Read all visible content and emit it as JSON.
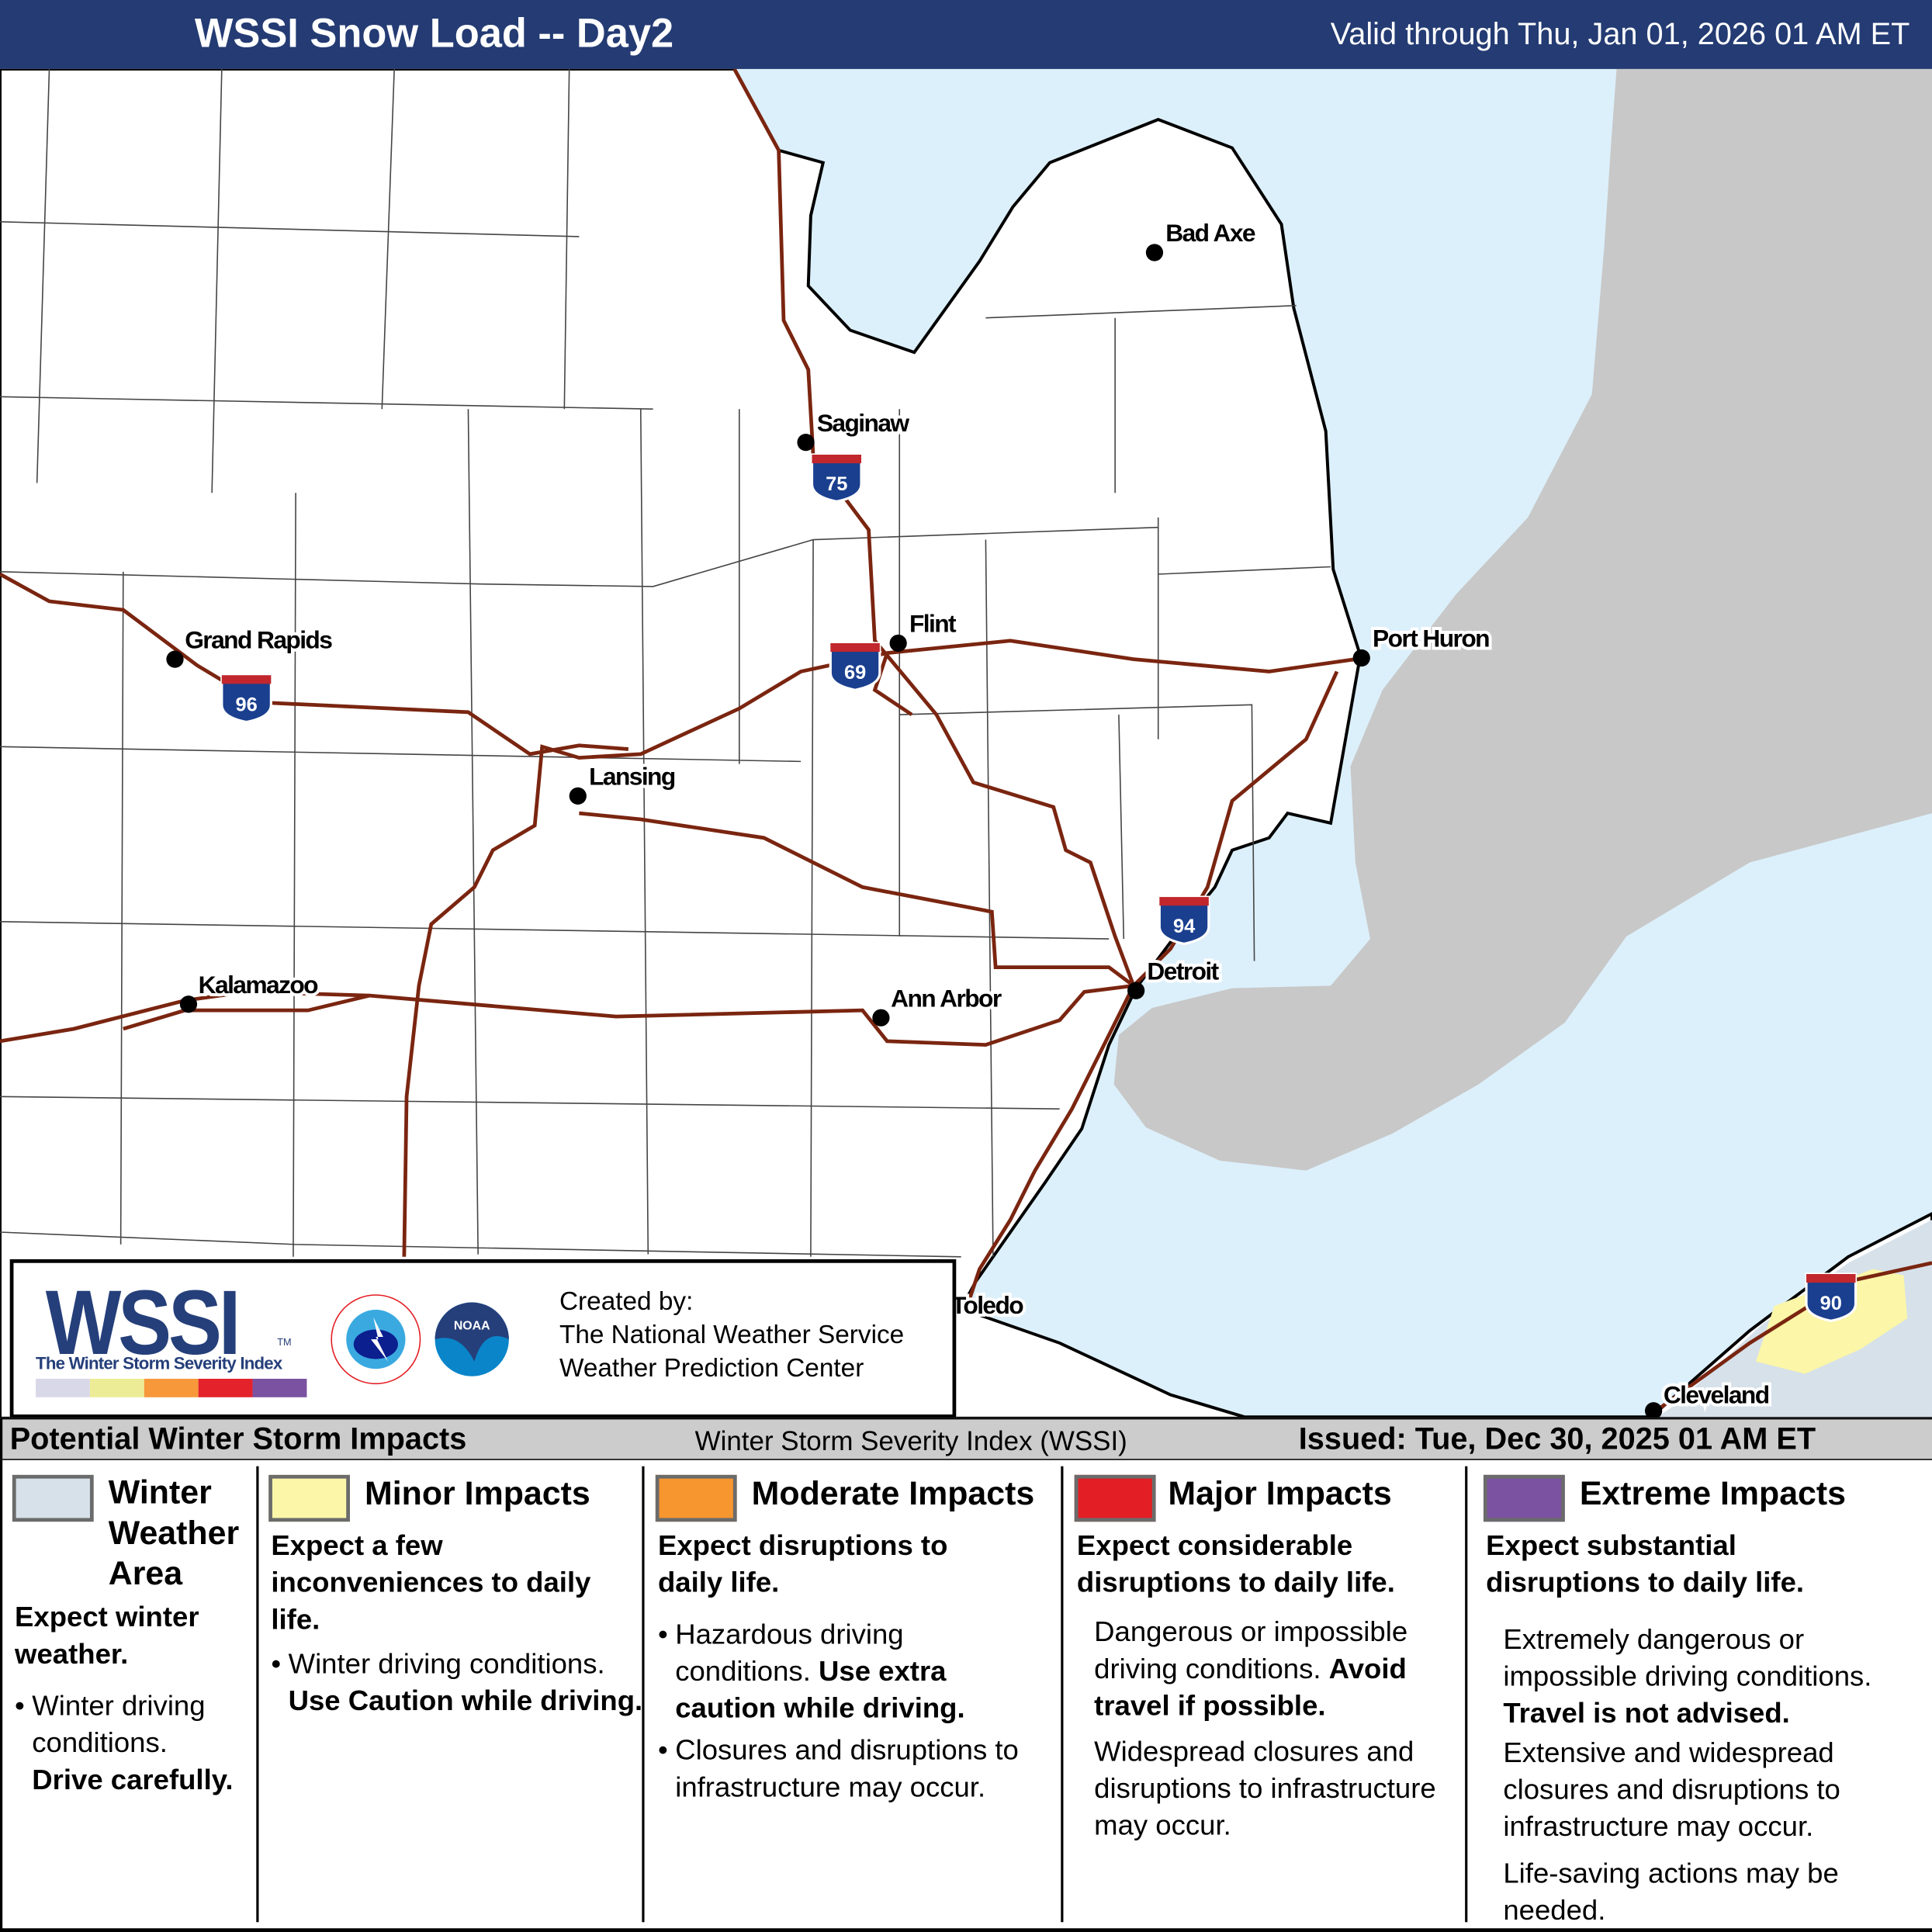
{
  "header": {
    "title": "WSSI Snow Load -- Day2",
    "valid": "Valid through Thu, Jan 01, 2026 01 AM ET",
    "bg_color": "#243b73"
  },
  "map": {
    "colors": {
      "land": "#ffffff",
      "water": "#dcf0fb",
      "canada": "#c8c8c8",
      "road": "#7a2510",
      "winter_weather_area": "#d6e1ea",
      "minor": "#fbf6a8"
    },
    "cities": [
      {
        "name": "Bad Axe"
      },
      {
        "name": "Saginaw"
      },
      {
        "name": "Grand Rapids"
      },
      {
        "name": "Flint"
      },
      {
        "name": "Port Huron"
      },
      {
        "name": "Lansing"
      },
      {
        "name": "Detroit"
      },
      {
        "name": "Kalamazoo"
      },
      {
        "name": "Ann Arbor"
      },
      {
        "name": "Toledo"
      },
      {
        "name": "Cleveland"
      }
    ],
    "interstates": [
      "75",
      "69",
      "96",
      "94",
      "90"
    ]
  },
  "logo_box": {
    "wssi": "WSSI",
    "tm": "TM",
    "subtitle": "The Winter Storm Severity Index",
    "color_bar": [
      "#d8d8e8",
      "#ecec96",
      "#f7983a",
      "#e3222b",
      "#7b52a1"
    ],
    "nws_logo": "NATIONAL WEATHER SERVICE",
    "noaa_logo": "NOAA",
    "created_by": "Created by:",
    "org1": "The National Weather Service",
    "org2": "Weather Prediction Center"
  },
  "bar": {
    "left": "Potential Winter Storm Impacts",
    "center": "Winter Storm Severity Index (WSSI)",
    "right": "Issued: Tue, Dec 30, 2025 01 AM ET"
  },
  "categories": [
    {
      "color": "#d6e1ea",
      "title_l1": "Winter",
      "title_l2": "Weather",
      "title_l3": "Area",
      "expect": "Expect winter weather.",
      "b1_normal": "Winter driving conditions.",
      "b1_bold": "Drive carefully."
    },
    {
      "color": "#fbf6a8",
      "title": "Minor Impacts",
      "expect": "Expect a few inconveniences to daily life.",
      "b1_normal": "Winter driving conditions.",
      "b1_bold": "Use Caution while driving."
    },
    {
      "color": "#f7952f",
      "title": "Moderate Impacts",
      "expect": "Expect disruptions to daily life.",
      "b1_normal": "Hazardous driving conditions.",
      "b1_bold": "Use extra caution while driving.",
      "b2": "Closures and disruptions to infrastructure may occur."
    },
    {
      "color": "#e31e24",
      "title": "Major Impacts",
      "expect": "Expect considerable disruptions to daily life.",
      "p1_normal": "Dangerous or impossible driving conditions.",
      "p1_bold": "Avoid travel if possible.",
      "p2": "Widespread closures and disruptions to infrastructure may occur."
    },
    {
      "color": "#7b52a1",
      "title": "Extreme Impacts",
      "expect": "Expect substantial disruptions to daily life.",
      "p1_normal": "Extremely dangerous or impossible driving conditions.",
      "p1_bold": "Travel is not advised.",
      "p2": "Extensive and widespread closures and disruptions to infrastructure may occur.",
      "p3": "Life-saving actions may be needed."
    }
  ]
}
